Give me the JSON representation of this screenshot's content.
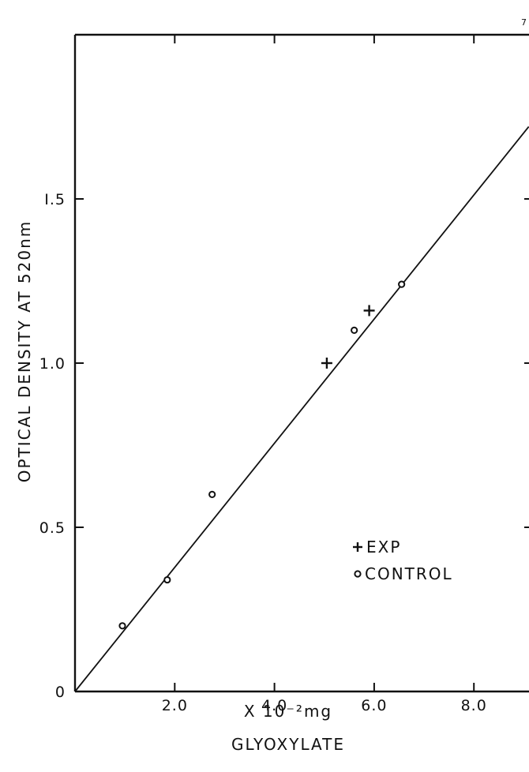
{
  "page_number": "7",
  "chart_data": {
    "type": "scatter",
    "title": "",
    "xlabel": "X 10⁻²mg",
    "xlabel_sub": "GLYOXYLATE",
    "ylabel": "OPTICAL DENSITY AT 520nm",
    "xlim": [
      0,
      9.2
    ],
    "ylim": [
      0,
      2.0
    ],
    "x_ticks": [
      {
        "value": 2.0,
        "label": "2.0"
      },
      {
        "value": 4.0,
        "label": "4.0"
      },
      {
        "value": 6.0,
        "label": "6.0"
      },
      {
        "value": 8.0,
        "label": "8.0"
      }
    ],
    "y_ticks": [
      {
        "value": 0,
        "label": "0"
      },
      {
        "value": 0.5,
        "label": "0.5"
      },
      {
        "value": 1.0,
        "label": "1.0"
      },
      {
        "value": 1.5,
        "label": "I.5"
      }
    ],
    "grid": false,
    "legend_position": "lower-right",
    "series": [
      {
        "name": "EXP",
        "marker": "+",
        "points": [
          {
            "x": 5.05,
            "y": 1.0
          },
          {
            "x": 5.9,
            "y": 1.16
          }
        ]
      },
      {
        "name": "CONTROL",
        "marker": "o",
        "points": [
          {
            "x": 0.95,
            "y": 0.2
          },
          {
            "x": 1.85,
            "y": 0.34
          },
          {
            "x": 2.75,
            "y": 0.6
          },
          {
            "x": 5.6,
            "y": 1.1
          },
          {
            "x": 6.55,
            "y": 1.24
          }
        ]
      }
    ],
    "fit_line": {
      "x": [
        0,
        9.1
      ],
      "y": [
        0,
        1.72
      ]
    }
  }
}
